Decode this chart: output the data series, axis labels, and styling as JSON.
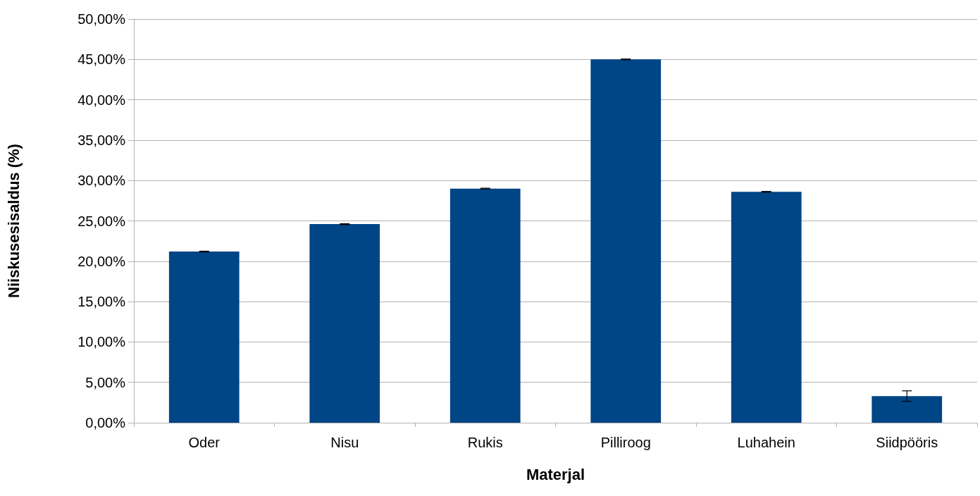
{
  "chart_data": {
    "type": "bar",
    "xlabel": "Materjal",
    "ylabel": "Niiskusesisaldus (%)",
    "categories": [
      "Oder",
      "Nisu",
      "Rukis",
      "Pilliroog",
      "Luhahein",
      "Siidpööris"
    ],
    "values": [
      21.2,
      24.6,
      29.0,
      45.0,
      28.6,
      3.3
    ],
    "errors": [
      0.05,
      0.05,
      0.05,
      0.05,
      0.05,
      0.65
    ],
    "color": "#004586",
    "ylim": [
      0,
      50
    ],
    "yticks": [
      {
        "value": 0,
        "label": "0,00%"
      },
      {
        "value": 5,
        "label": "5,00%"
      },
      {
        "value": 10,
        "label": "10,00%"
      },
      {
        "value": 15,
        "label": "15,00%"
      },
      {
        "value": 20,
        "label": "20,00%"
      },
      {
        "value": 25,
        "label": "25,00%"
      },
      {
        "value": 30,
        "label": "30,00%"
      },
      {
        "value": 35,
        "label": "35,00%"
      },
      {
        "value": 40,
        "label": "40,00%"
      },
      {
        "value": 45,
        "label": "45,00%"
      },
      {
        "value": 50,
        "label": "50,00%"
      }
    ],
    "grid": "y"
  }
}
